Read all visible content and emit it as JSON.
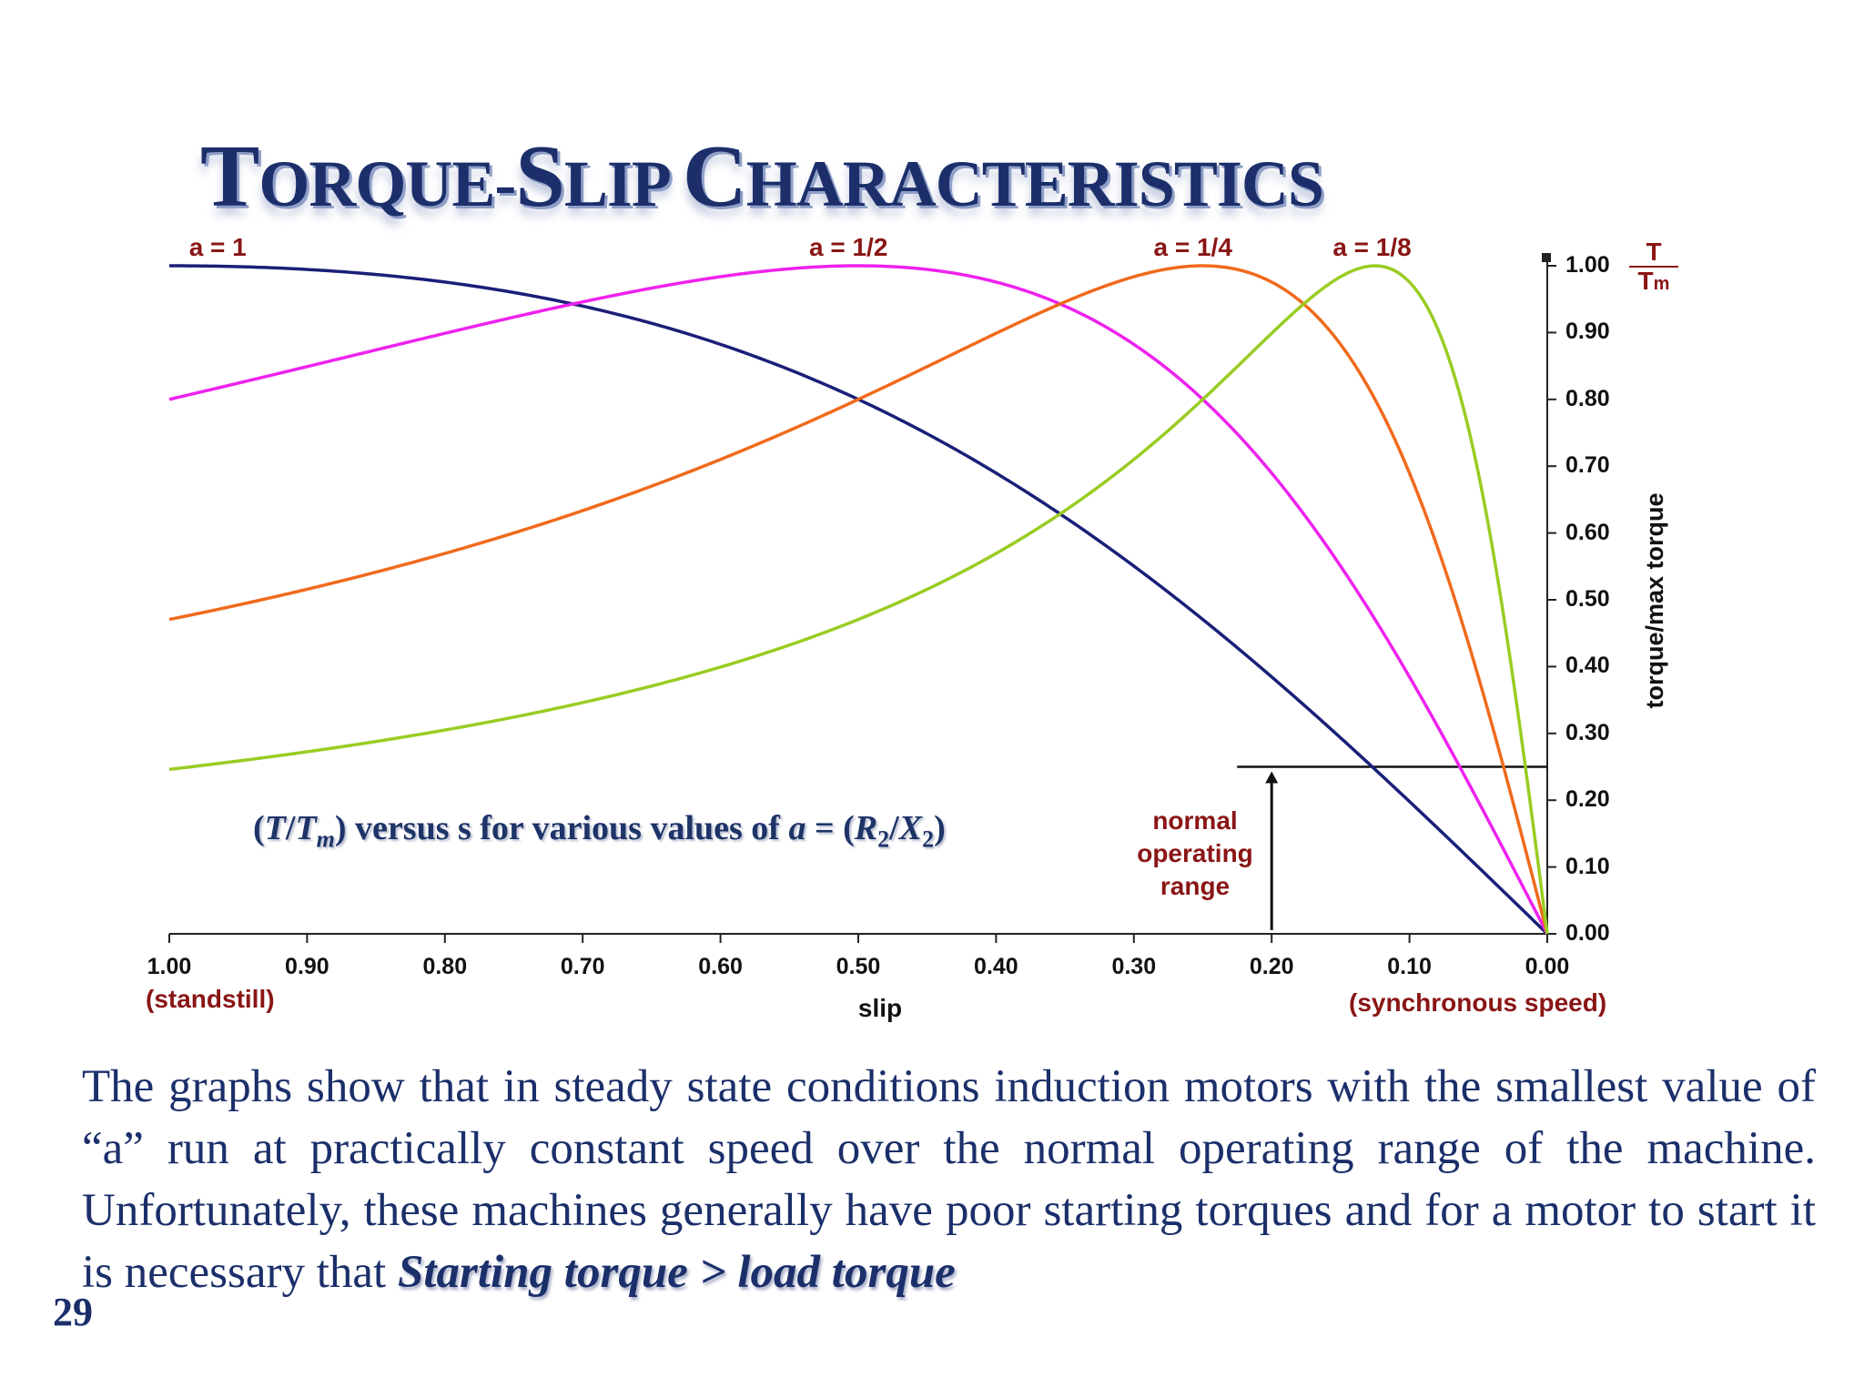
{
  "title": {
    "big1": "T",
    "rest1": "ORQUE-",
    "big2": "S",
    "rest2": "LIP ",
    "big3": "C",
    "rest3": "HARACTERISTICS"
  },
  "chart_data": {
    "type": "line",
    "xlabel": "slip",
    "ylabel": "torque/max torque",
    "y_ratio": {
      "numerator": "T",
      "denominator": "T",
      "sub": "m"
    },
    "xlim": [
      1.0,
      0.0
    ],
    "ylim": [
      0.0,
      1.0
    ],
    "x_reversed": true,
    "x_ticks": [
      "1.00",
      "0.90",
      "0.80",
      "0.70",
      "0.60",
      "0.50",
      "0.40",
      "0.30",
      "0.20",
      "0.10",
      "0.00"
    ],
    "y_ticks": [
      "0.00",
      "0.10",
      "0.20",
      "0.30",
      "0.40",
      "0.50",
      "0.60",
      "0.70",
      "0.80",
      "0.90",
      "1.00"
    ],
    "x_end_labels": {
      "left": "(standstill)",
      "right": "(synchronous speed)"
    },
    "grid": false,
    "normal_operating_range": {
      "label": [
        "normal",
        "operating",
        "range"
      ],
      "slip_max": 0.2,
      "torque_level": 0.25
    },
    "series": [
      {
        "name": "a = 1",
        "a": 1,
        "color": "#1a1f78",
        "label_slip": 0.95
      },
      {
        "name": "a = 1/2",
        "a": 0.5,
        "color": "#ee22ee",
        "label_slip": 0.5
      },
      {
        "name": "a = 1/4",
        "a": 0.25,
        "color": "#f06a1c",
        "label_slip": 0.25
      },
      {
        "name": "a = 1/8",
        "a": 0.125,
        "color": "#99cc22",
        "label_slip": 0.12
      }
    ]
  },
  "caption": {
    "p1": "(",
    "T1": "T",
    "slash1": "/",
    "T2": "T",
    "m": "m",
    "p2": ") versus s for various values of ",
    "a": "a",
    "eq": " = (",
    "R": "R",
    "two1": "2",
    "slash2": "/",
    "X": "X",
    "two2": "2",
    "p3": ")"
  },
  "body": {
    "text": "The graphs show that in steady state conditions induction motors with the smallest value of “a” run at practically constant speed over the normal operating range of the machine.  Unfortunately, these machines generally have poor starting torques and for a motor to start it is necessary that ",
    "emphasis": "Starting torque > load torque"
  },
  "page_number": "29"
}
